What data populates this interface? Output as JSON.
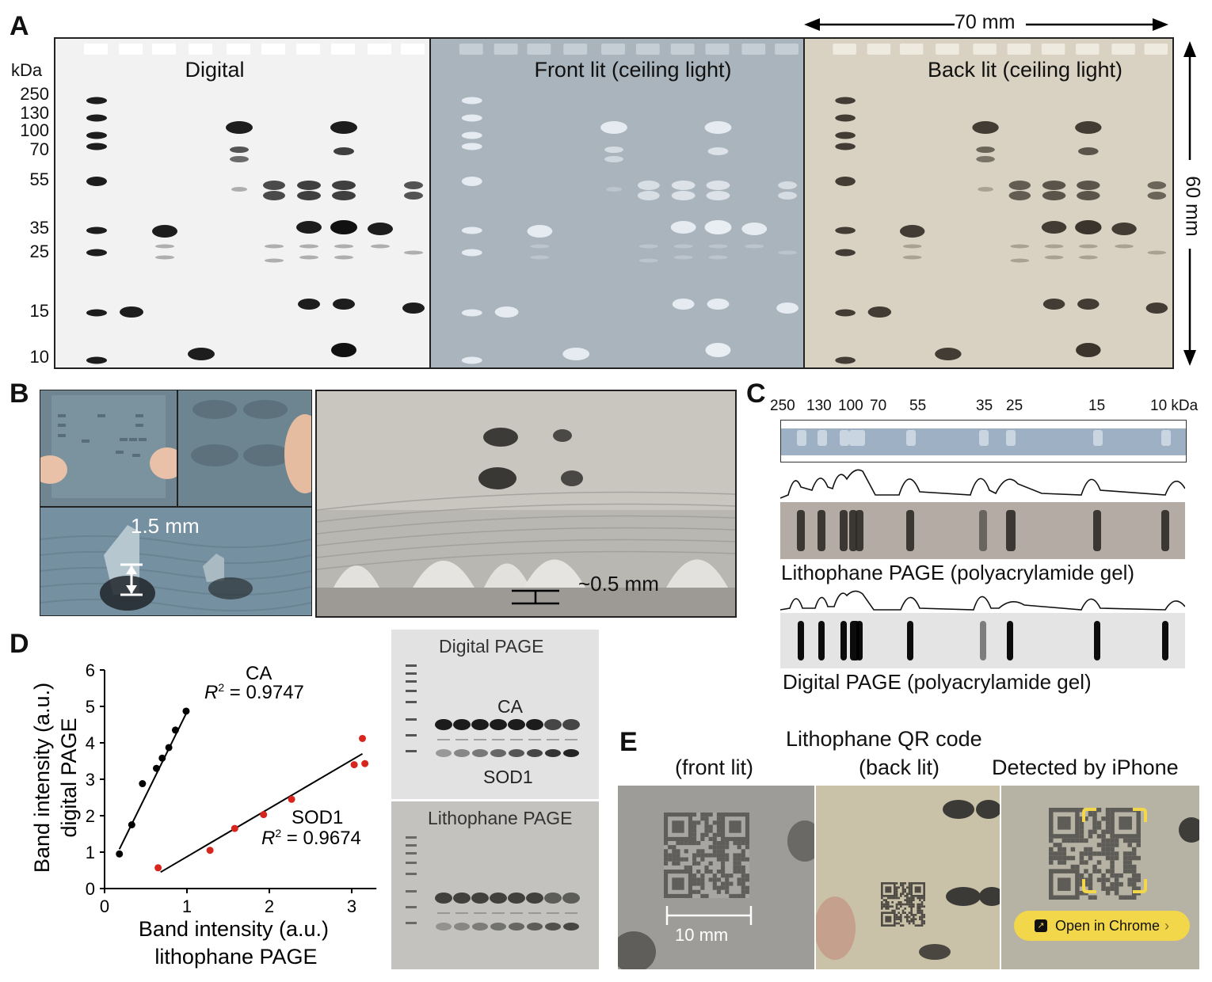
{
  "panels": {
    "a": {
      "letter": "A",
      "kda_label": "kDa",
      "markers": [
        "250",
        "130",
        "100",
        "70",
        "55",
        "35",
        "25",
        "15",
        "10"
      ],
      "gel_titles": [
        "Digital",
        "Front lit (ceiling light)",
        "Back lit (ceiling light)"
      ],
      "width_label": "70 mm",
      "height_label": "60 mm"
    },
    "b": {
      "letter": "B",
      "height_label": "1.5 mm",
      "thickness_label": "~0.5 mm"
    },
    "c": {
      "letter": "C",
      "markers": [
        "250",
        "130",
        "100",
        "70",
        "55",
        "35",
        "25",
        "15",
        "10 kDa"
      ],
      "litho_caption": "Lithophane PAGE (polyacrylamide gel)",
      "digital_caption": "Digital PAGE (polyacrylamide gel)"
    },
    "d": {
      "letter": "D",
      "ca_label": "CA",
      "ca_r2_value": " = 0.9747",
      "sod1_label": "SOD1",
      "sod1_r2_value": " = 0.9674",
      "r2_symbol": "R",
      "r2_sup": "2",
      "gel_title_digital": "Digital PAGE",
      "gel_title_litho": "Lithophane PAGE",
      "gel_ca": "CA",
      "gel_sod1": "SOD1"
    },
    "e": {
      "letter": "E",
      "title": "Lithophane QR code",
      "sub_front": "(front lit)",
      "sub_back": "(back lit)",
      "sub_detect": "Detected by iPhone",
      "scale_label": "10 mm",
      "button_label": "Open in Chrome"
    }
  },
  "chart_data": {
    "type": "scatter",
    "xlabel": "Band intensity (a.u.) lithophane PAGE",
    "ylabel": "Band intensity (a.u.) digital PAGE",
    "xlim": [
      0,
      3.3
    ],
    "ylim": [
      0,
      6
    ],
    "xticks": [
      0,
      1,
      2,
      3
    ],
    "yticks": [
      0,
      1,
      2,
      3,
      4,
      5,
      6
    ],
    "colors": {
      "CA": "#000000",
      "SOD1": "#d8261f"
    },
    "series": [
      {
        "name": "CA",
        "r2": "0.9747",
        "x": [
          0.18,
          0.33,
          0.46,
          0.63,
          0.7,
          0.78,
          0.86,
          0.99
        ],
        "y": [
          0.95,
          1.75,
          2.88,
          3.3,
          3.58,
          3.87,
          4.35,
          4.87
        ],
        "fit": [
          [
            0.18,
            1.08
          ],
          [
            1.0,
            4.85
          ]
        ]
      },
      {
        "name": "SOD1",
        "r2": "0.9674",
        "x": [
          0.65,
          1.28,
          1.58,
          1.93,
          2.27,
          3.03,
          3.13,
          3.16
        ],
        "y": [
          0.57,
          1.05,
          1.65,
          2.03,
          2.45,
          3.4,
          4.12,
          3.43
        ],
        "fit": [
          [
            0.68,
            0.45
          ],
          [
            3.13,
            3.7
          ]
        ]
      }
    ]
  }
}
